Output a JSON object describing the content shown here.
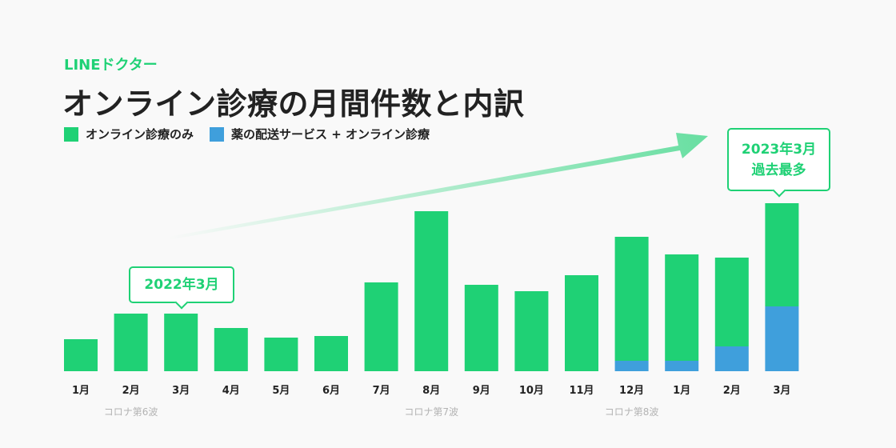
{
  "brand": "LINEドクター",
  "title": "オンライン診療の月間件数と内訳",
  "legend": [
    {
      "label": "オンライン診療のみ",
      "color": "#1fd175"
    },
    {
      "label": "薬の配送サービス + オンライン診療",
      "color": "#3f9fdc"
    }
  ],
  "callouts": {
    "c2022": "2022年3月",
    "c2023_line1": "2023年3月",
    "c2023_line2": "過去最多"
  },
  "chart_data": {
    "type": "bar",
    "stacked": true,
    "title": "オンライン診療の月間件数と内訳",
    "categories": [
      "1月",
      "2月",
      "3月",
      "4月",
      "5月",
      "6月",
      "7月",
      "8月",
      "9月",
      "10月",
      "11月",
      "12月",
      "1月",
      "2月",
      "3月"
    ],
    "series": [
      {
        "name": "薬の配送サービス + オンライン診療",
        "color": "#3f9fdc",
        "values": [
          0,
          0,
          0,
          0,
          0,
          0,
          0,
          0,
          0,
          0,
          0,
          13,
          13,
          31,
          81
        ]
      },
      {
        "name": "オンライン診療のみ",
        "color": "#1fd175",
        "values": [
          40,
          72,
          72,
          54,
          42,
          44,
          111,
          200,
          108,
          100,
          120,
          155,
          133,
          111,
          129
        ]
      }
    ],
    "ylim": [
      0,
      210
    ],
    "annotations": [
      {
        "label": "コロナ第6波",
        "category_index": 1
      },
      {
        "label": "コロナ第7波",
        "category_index": 7
      },
      {
        "label": "コロナ第8波",
        "category_index": 11
      }
    ],
    "grid": false,
    "legend_position": "top-left"
  }
}
